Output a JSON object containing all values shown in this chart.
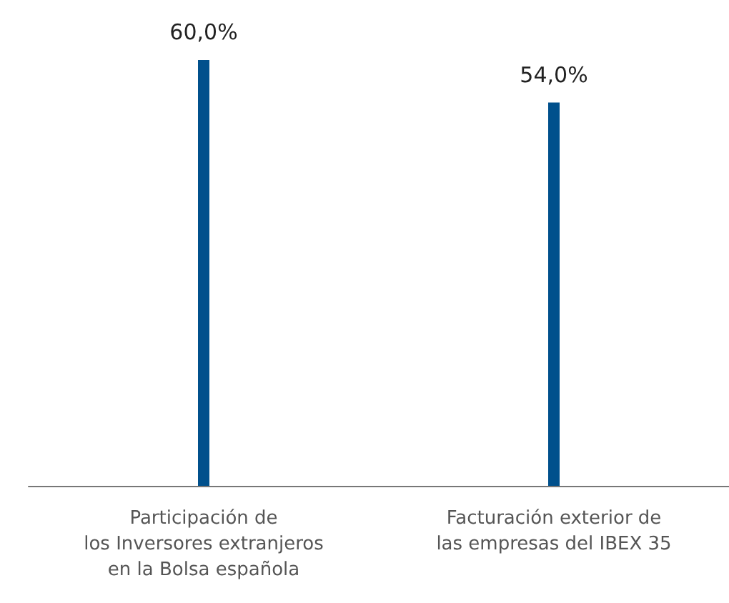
{
  "chart_data": {
    "type": "bar",
    "categories": [
      "Participación de\nlos Inversores extranjeros\nen la Bolsa española",
      "Facturación exterior de\nlas empresas del IBEX 35"
    ],
    "values": [
      60,
      54
    ],
    "color": "#00508c",
    "value_labels": [
      "60,0%",
      "54,0%"
    ]
  }
}
